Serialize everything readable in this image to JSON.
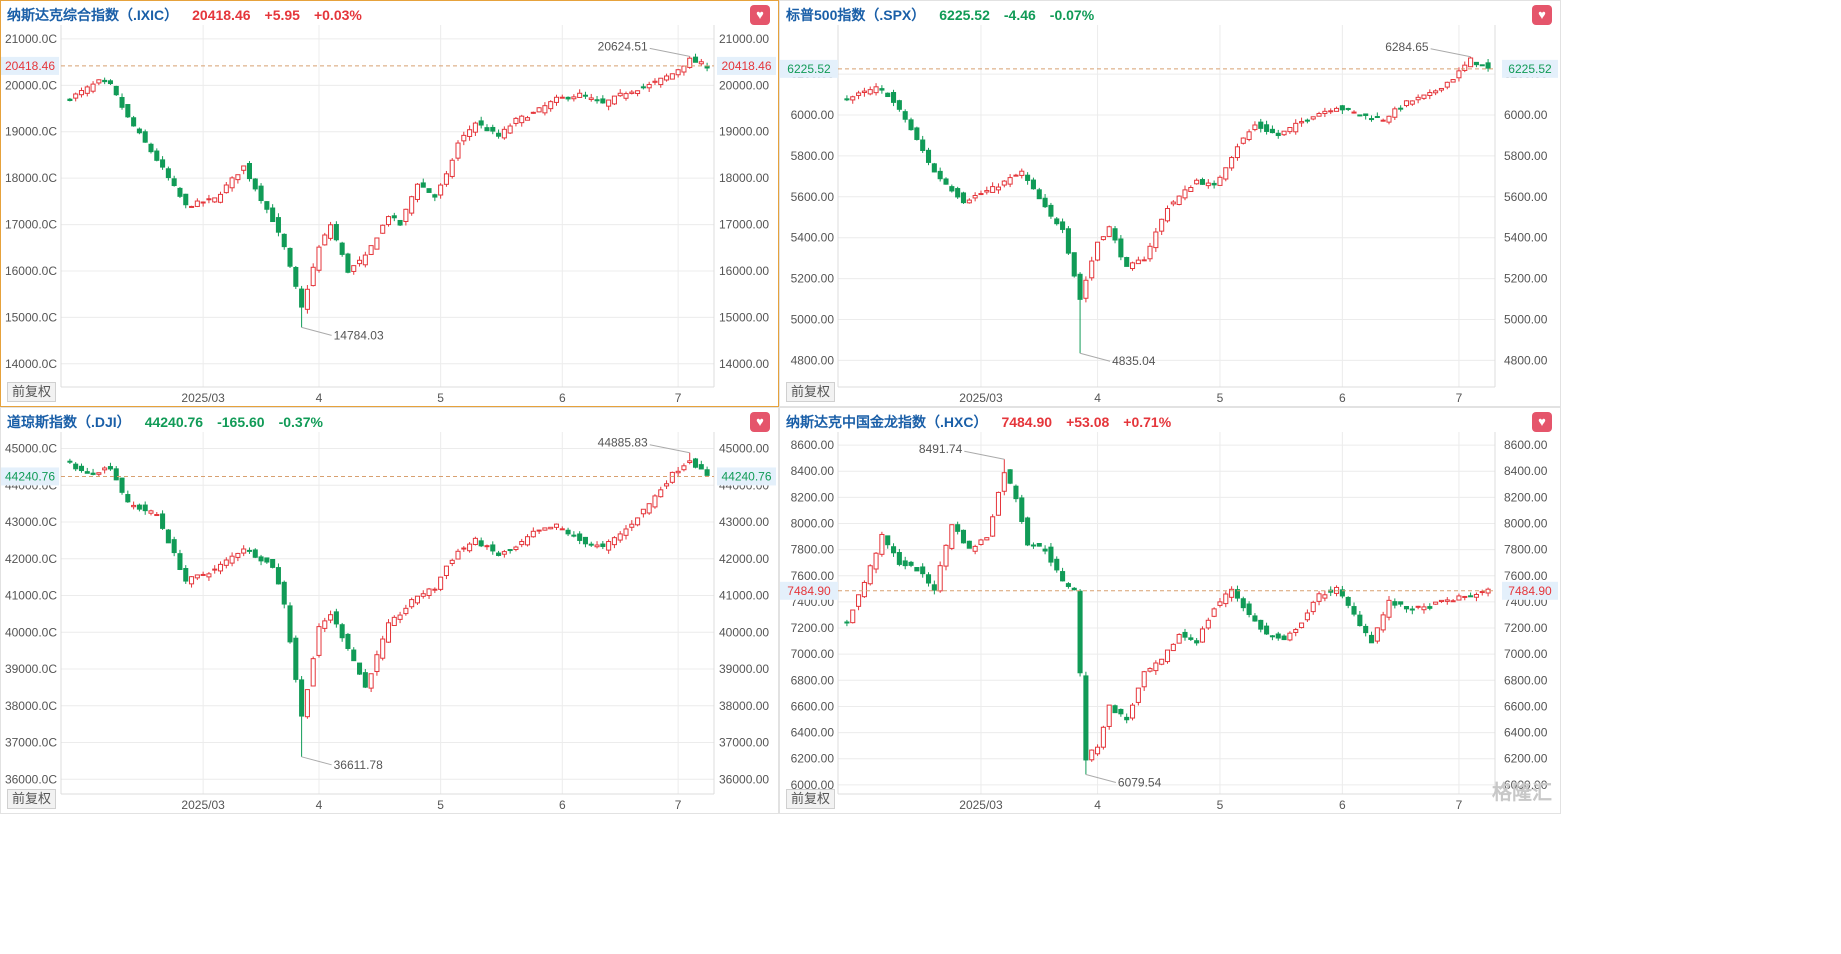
{
  "watermark": "格隆汇",
  "adjust_label": "前复权",
  "colors": {
    "up": "#e5363b",
    "down": "#119b57",
    "title": "#1a5fa8",
    "refline": "#d8a070"
  },
  "chart_data": [
    {
      "type": "candlestick",
      "title": "纳斯达克综合指数（.IXIC）",
      "price": "20418.46",
      "change": "+5.95",
      "pct": "+0.03%",
      "direction": "up",
      "current_label": "20418.46",
      "current": 20418.46,
      "ylim": [
        13500,
        21300
      ],
      "yticks": [
        14000,
        15000,
        16000,
        17000,
        18000,
        19000,
        20000,
        21000
      ],
      "ytick_labels_left": [
        "14000.0C",
        "15000.0C",
        "16000.0C",
        "17000.0C",
        "18000.0C",
        "19000.0C",
        "20000.0C",
        "21000.0C"
      ],
      "ytick_labels_right": [
        "14000.00",
        "15000.00",
        "16000.00",
        "17000.00",
        "18000.00",
        "19000.00",
        "20000.00",
        "21000.00"
      ],
      "xticks": [
        {
          "x": 23,
          "label": "2025/03"
        },
        {
          "x": 43,
          "label": "4"
        },
        {
          "x": 64,
          "label": "5"
        },
        {
          "x": 85,
          "label": "6"
        },
        {
          "x": 105,
          "label": "7"
        }
      ],
      "nbars": 111,
      "max_label": "20624.51",
      "max_x": 107,
      "max_val": 20624.51,
      "min_label": "14784.03",
      "min_x": 40,
      "min_val": 14784.03,
      "anchors": [
        [
          0,
          19720
        ],
        [
          5,
          20080
        ],
        [
          7,
          20000
        ],
        [
          10,
          19300
        ],
        [
          15,
          18400
        ],
        [
          20,
          17400
        ],
        [
          25,
          17550
        ],
        [
          30,
          18250
        ],
        [
          35,
          17100
        ],
        [
          37,
          16500
        ],
        [
          40,
          15200
        ],
        [
          43,
          16500
        ],
        [
          45,
          17000
        ],
        [
          48,
          16000
        ],
        [
          51,
          16300
        ],
        [
          55,
          17200
        ],
        [
          57,
          17000
        ],
        [
          60,
          17900
        ],
        [
          63,
          17600
        ],
        [
          65,
          18050
        ],
        [
          67,
          18750
        ],
        [
          70,
          19200
        ],
        [
          74,
          18900
        ],
        [
          77,
          19250
        ],
        [
          80,
          19400
        ],
        [
          84,
          19700
        ],
        [
          88,
          19800
        ],
        [
          92,
          19600
        ],
        [
          96,
          19850
        ],
        [
          100,
          20000
        ],
        [
          104,
          20250
        ],
        [
          107,
          20550
        ],
        [
          110,
          20418
        ]
      ]
    },
    {
      "type": "candlestick",
      "title": "标普500指数（.SPX）",
      "price": "6225.52",
      "change": "-4.46",
      "pct": "-0.07%",
      "direction": "down",
      "current_label": "6225.52",
      "current": 6225.52,
      "ylim": [
        4670,
        6440
      ],
      "yticks": [
        4800,
        5000,
        5200,
        5400,
        5600,
        5800,
        6000,
        6200
      ],
      "ytick_labels_left": [
        "4800.00",
        "5000.00",
        "5200.00",
        "5400.00",
        "5600.00",
        "5800.00",
        "6000.00",
        "6200.00"
      ],
      "ytick_labels_right": [
        "4800.00",
        "5000.00",
        "5200.00",
        "5400.00",
        "5600.00",
        "5800.00",
        "6000.00",
        "6200.00"
      ],
      "xticks": [
        {
          "x": 23,
          "label": "2025/03"
        },
        {
          "x": 43,
          "label": "4"
        },
        {
          "x": 64,
          "label": "5"
        },
        {
          "x": 85,
          "label": "6"
        },
        {
          "x": 105,
          "label": "7"
        }
      ],
      "nbars": 111,
      "max_label": "6284.65",
      "max_x": 107,
      "max_val": 6284.65,
      "min_label": "4835.04",
      "min_x": 40,
      "min_val": 4835.04,
      "anchors": [
        [
          0,
          6080
        ],
        [
          5,
          6130
        ],
        [
          7,
          6100
        ],
        [
          10,
          5980
        ],
        [
          15,
          5720
        ],
        [
          20,
          5580
        ],
        [
          25,
          5640
        ],
        [
          30,
          5720
        ],
        [
          35,
          5500
        ],
        [
          37,
          5450
        ],
        [
          40,
          5100
        ],
        [
          43,
          5380
        ],
        [
          45,
          5450
        ],
        [
          48,
          5250
        ],
        [
          51,
          5300
        ],
        [
          55,
          5550
        ],
        [
          57,
          5600
        ],
        [
          60,
          5680
        ],
        [
          63,
          5650
        ],
        [
          65,
          5750
        ],
        [
          67,
          5850
        ],
        [
          70,
          5950
        ],
        [
          74,
          5900
        ],
        [
          77,
          5950
        ],
        [
          80,
          6000
        ],
        [
          84,
          6040
        ],
        [
          88,
          6000
        ],
        [
          92,
          5980
        ],
        [
          96,
          6060
        ],
        [
          100,
          6100
        ],
        [
          104,
          6180
        ],
        [
          107,
          6270
        ],
        [
          110,
          6225
        ]
      ]
    },
    {
      "type": "candlestick",
      "title": "道琼斯指数（.DJI）",
      "price": "44240.76",
      "change": "-165.60",
      "pct": "-0.37%",
      "direction": "down",
      "current_label": "44240.76",
      "current": 44240.76,
      "ylim": [
        35600,
        45450
      ],
      "yticks": [
        36000,
        37000,
        38000,
        39000,
        40000,
        41000,
        42000,
        43000,
        44000,
        45000
      ],
      "ytick_labels_left": [
        "36000.0C",
        "37000.0C",
        "38000.0C",
        "39000.0C",
        "40000.0C",
        "41000.0C",
        "42000.0C",
        "43000.0C",
        "44000.0C",
        "45000.0C"
      ],
      "ytick_labels_right": [
        "36000.00",
        "37000.00",
        "38000.00",
        "39000.00",
        "40000.00",
        "41000.00",
        "42000.00",
        "43000.00",
        "44000.00",
        "45000.00"
      ],
      "xticks": [
        {
          "x": 23,
          "label": "2025/03"
        },
        {
          "x": 43,
          "label": "4"
        },
        {
          "x": 64,
          "label": "5"
        },
        {
          "x": 85,
          "label": "6"
        },
        {
          "x": 105,
          "label": "7"
        }
      ],
      "nbars": 111,
      "max_label": "44885.83",
      "max_x": 107,
      "max_val": 44885.83,
      "min_label": "36611.78",
      "min_x": 40,
      "min_val": 36611.78,
      "anchors": [
        [
          0,
          44600
        ],
        [
          3,
          44300
        ],
        [
          7,
          44500
        ],
        [
          10,
          43500
        ],
        [
          15,
          43200
        ],
        [
          20,
          41400
        ],
        [
          25,
          41700
        ],
        [
          30,
          42300
        ],
        [
          35,
          41800
        ],
        [
          37,
          40800
        ],
        [
          40,
          37700
        ],
        [
          43,
          40100
        ],
        [
          45,
          40500
        ],
        [
          48,
          39600
        ],
        [
          51,
          38500
        ],
        [
          55,
          40200
        ],
        [
          57,
          40500
        ],
        [
          60,
          41000
        ],
        [
          63,
          41200
        ],
        [
          65,
          41800
        ],
        [
          67,
          42200
        ],
        [
          70,
          42500
        ],
        [
          74,
          42100
        ],
        [
          77,
          42300
        ],
        [
          80,
          42700
        ],
        [
          84,
          42900
        ],
        [
          88,
          42500
        ],
        [
          92,
          42300
        ],
        [
          96,
          42800
        ],
        [
          100,
          43500
        ],
        [
          104,
          44300
        ],
        [
          107,
          44700
        ],
        [
          110,
          44240
        ]
      ]
    },
    {
      "type": "candlestick",
      "title": "纳斯达克中国金龙指数（.HXC）",
      "price": "7484.90",
      "change": "+53.08",
      "pct": "+0.71%",
      "direction": "up",
      "current_label": "7484.90",
      "current": 7484.9,
      "ylim": [
        5930,
        8700
      ],
      "yticks": [
        6000,
        6200,
        6400,
        6600,
        6800,
        7000,
        7200,
        7400,
        7600,
        7800,
        8000,
        8200,
        8400,
        8600
      ],
      "ytick_labels_left": [
        "6000.00",
        "6200.00",
        "6400.00",
        "6600.00",
        "6800.00",
        "7000.00",
        "7200.00",
        "7400.00",
        "7600.00",
        "7800.00",
        "8000.00",
        "8200.00",
        "8400.00",
        "8600.00"
      ],
      "ytick_labels_right": [
        "6000.00",
        "6200.00",
        "6400.00",
        "6600.00",
        "6800.00",
        "7000.00",
        "7200.00",
        "7400.00",
        "7600.00",
        "7800.00",
        "8000.00",
        "8200.00",
        "8400.00",
        "8600.00"
      ],
      "xticks": [
        {
          "x": 23,
          "label": "2025/03"
        },
        {
          "x": 43,
          "label": "4"
        },
        {
          "x": 64,
          "label": "5"
        },
        {
          "x": 85,
          "label": "6"
        },
        {
          "x": 105,
          "label": "7"
        }
      ],
      "nbars": 111,
      "max_label": "8491.74",
      "max_x": 27,
      "max_val": 8491.74,
      "min_label": "6079.54",
      "min_x": 41,
      "min_val": 6079.54,
      "anchors": [
        [
          0,
          7250
        ],
        [
          3,
          7550
        ],
        [
          6,
          7900
        ],
        [
          9,
          7700
        ],
        [
          12,
          7650
        ],
        [
          15,
          7500
        ],
        [
          18,
          8000
        ],
        [
          21,
          7800
        ],
        [
          24,
          7900
        ],
        [
          27,
          8400
        ],
        [
          29,
          8200
        ],
        [
          31,
          7850
        ],
        [
          34,
          7800
        ],
        [
          37,
          7550
        ],
        [
          39,
          7500
        ],
        [
          41,
          6200
        ],
        [
          43,
          6300
        ],
        [
          45,
          6600
        ],
        [
          48,
          6500
        ],
        [
          51,
          6850
        ],
        [
          54,
          6950
        ],
        [
          57,
          7150
        ],
        [
          60,
          7100
        ],
        [
          63,
          7350
        ],
        [
          66,
          7500
        ],
        [
          69,
          7300
        ],
        [
          72,
          7150
        ],
        [
          75,
          7100
        ],
        [
          78,
          7250
        ],
        [
          81,
          7450
        ],
        [
          84,
          7500
        ],
        [
          87,
          7300
        ],
        [
          90,
          7100
        ],
        [
          93,
          7400
        ],
        [
          96,
          7350
        ],
        [
          99,
          7350
        ],
        [
          102,
          7400
        ],
        [
          105,
          7430
        ],
        [
          110,
          7484
        ]
      ]
    }
  ]
}
